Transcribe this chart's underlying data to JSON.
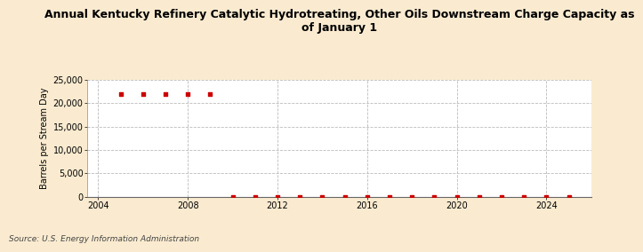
{
  "title": "Annual Kentucky Refinery Catalytic Hydrotreating, Other Oils Downstream Charge Capacity as\nof January 1",
  "ylabel": "Barrels per Stream Day",
  "source": "Source: U.S. Energy Information Administration",
  "background_color": "#faebd0",
  "plot_bg_color": "#ffffff",
  "marker_color": "#cc0000",
  "grid_color": "#bbbbbb",
  "years": [
    2005,
    2006,
    2007,
    2008,
    2009,
    2010,
    2011,
    2012,
    2013,
    2014,
    2015,
    2016,
    2017,
    2018,
    2019,
    2020,
    2021,
    2022,
    2023,
    2024,
    2025
  ],
  "values": [
    22000,
    22000,
    22000,
    22000,
    22000,
    0,
    0,
    0,
    0,
    0,
    0,
    0,
    0,
    0,
    0,
    0,
    0,
    0,
    0,
    0,
    0
  ],
  "xlim": [
    2003.5,
    2026
  ],
  "ylim": [
    0,
    25000
  ],
  "yticks": [
    0,
    5000,
    10000,
    15000,
    20000,
    25000
  ],
  "xticks": [
    2004,
    2008,
    2012,
    2016,
    2020,
    2024
  ],
  "title_fontsize": 9,
  "ylabel_fontsize": 7,
  "tick_fontsize": 7,
  "source_fontsize": 6.5
}
